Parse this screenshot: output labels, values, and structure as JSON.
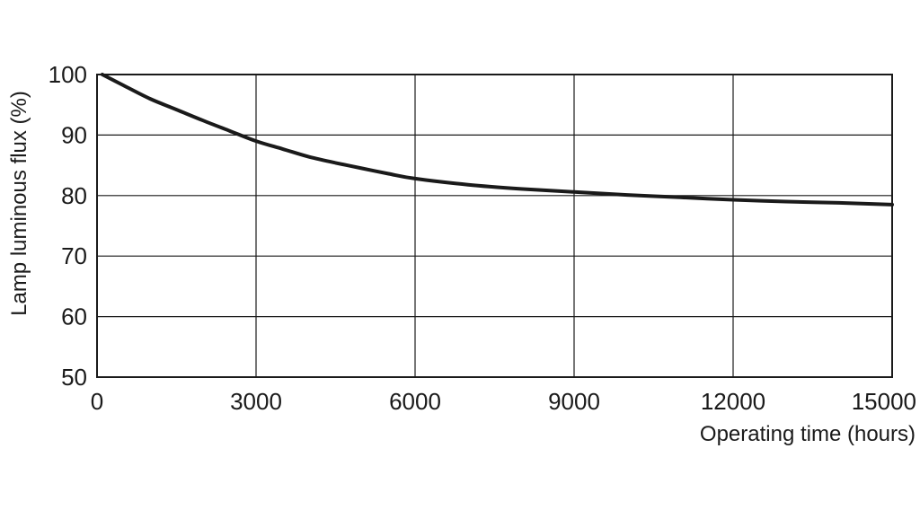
{
  "chart_data": {
    "type": "line",
    "title": "",
    "xlabel": "Operating time (hours)",
    "ylabel": "Lamp luminous flux (%)",
    "xlim": [
      0,
      15000
    ],
    "ylim": [
      50,
      100
    ],
    "x_ticks": [
      0,
      3000,
      6000,
      9000,
      12000,
      15000
    ],
    "y_ticks": [
      50,
      60,
      70,
      80,
      90,
      100
    ],
    "grid": true,
    "series": [
      {
        "x": [
          100,
          500,
          1000,
          1500,
          2000,
          2500,
          3000,
          3500,
          4000,
          4500,
          5000,
          5500,
          6000,
          7000,
          8000,
          9000,
          10000,
          11000,
          12000,
          13000,
          14000,
          15000
        ],
        "y": [
          100,
          98.2,
          96.0,
          94.2,
          92.4,
          90.7,
          89.0,
          87.7,
          86.4,
          85.4,
          84.5,
          83.6,
          82.8,
          81.8,
          81.1,
          80.6,
          80.1,
          79.7,
          79.3,
          79.0,
          78.8,
          78.5
        ]
      }
    ],
    "line_color": "#1a1a1a"
  }
}
